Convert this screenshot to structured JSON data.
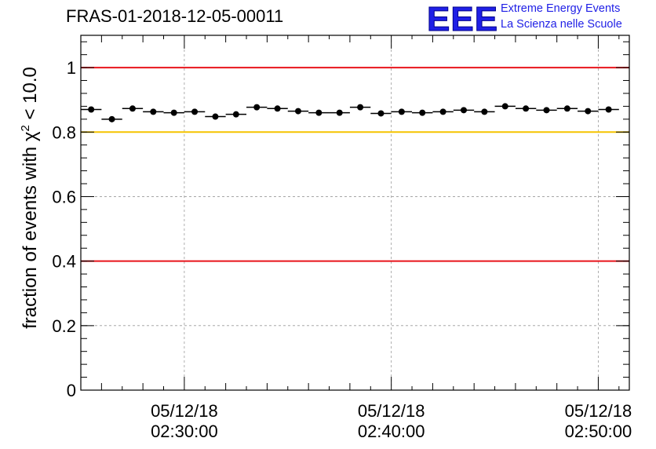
{
  "header": {
    "title": "FRAS-01-2018-12-05-00011",
    "logo_text": "EEE",
    "logo_line1": "Extreme Energy Events",
    "logo_line2": "La Scienza nelle Scuole"
  },
  "chart_data": {
    "type": "scatter",
    "title": "FRAS-01-2018-12-05-00011",
    "ylabel": "fraction of events with χ² < 10.0",
    "xlabel": "",
    "ylim": [
      0,
      1.1
    ],
    "yticks": [
      0,
      0.2,
      0.4,
      0.6,
      0.8,
      1
    ],
    "ytick_labels": [
      "0",
      "0.2",
      "0.4",
      "0.6",
      "0.8",
      "1"
    ],
    "xlim": [
      "05/12/18 02:25:00",
      "05/12/18 02:51:30"
    ],
    "xtick_labels": [
      {
        "date": "05/12/18",
        "time": "02:30:00"
      },
      {
        "date": "05/12/18",
        "time": "02:40:00"
      },
      {
        "date": "05/12/18",
        "time": "02:50:00"
      }
    ],
    "grid": true,
    "reference_lines": [
      {
        "y": 1.0,
        "color": "#e8141b"
      },
      {
        "y": 0.8,
        "color": "#f5c400"
      },
      {
        "y": 0.4,
        "color": "#e8141b"
      }
    ],
    "marker_color": "#000000",
    "bin_width_minutes": 1,
    "x": [
      "02:25:30",
      "02:26:30",
      "02:27:30",
      "02:28:30",
      "02:29:30",
      "02:30:30",
      "02:31:30",
      "02:32:30",
      "02:33:30",
      "02:34:30",
      "02:35:30",
      "02:36:30",
      "02:37:30",
      "02:38:30",
      "02:39:30",
      "02:40:30",
      "02:41:30",
      "02:42:30",
      "02:43:30",
      "02:44:30",
      "02:45:30",
      "02:46:30",
      "02:47:30",
      "02:48:30",
      "02:49:30",
      "02:50:30"
    ],
    "values": [
      0.87,
      0.84,
      0.873,
      0.863,
      0.86,
      0.863,
      0.848,
      0.855,
      0.877,
      0.873,
      0.865,
      0.86,
      0.86,
      0.877,
      0.858,
      0.863,
      0.86,
      0.863,
      0.868,
      0.863,
      0.88,
      0.873,
      0.868,
      0.873,
      0.865,
      0.87
    ]
  }
}
